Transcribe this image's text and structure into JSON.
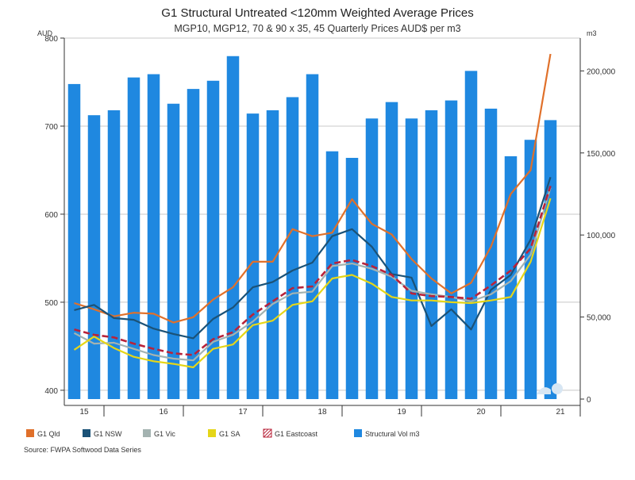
{
  "chart_data": {
    "type": "bar",
    "title": "G1 Structural Untreated <120mm Weighted Average Prices",
    "subtitle": "MGP10, MGP12, 70 & 90 x 35, 45 Quarterly Prices AUD$ per m3",
    "ylabel_left": "AUD",
    "ylabel_right": "m3",
    "source": "Source: FWPA Softwood Data Series",
    "ylim_left": [
      390,
      800
    ],
    "ylim_right": [
      0,
      220000
    ],
    "yticks_left": [
      "400",
      "500",
      "600",
      "700",
      "800"
    ],
    "yticks_right": [
      "0",
      "50,000",
      "100,000",
      "150,000",
      "200,000"
    ],
    "x_labels": [
      "15",
      "16",
      "17",
      "18",
      "19",
      "20",
      "21"
    ],
    "x_label_quarter_index": [
      0.5,
      4.5,
      8.5,
      12.5,
      16.5,
      20.5,
      24.5
    ],
    "num_quarters": 26,
    "bars": {
      "name": "Structural Vol m3",
      "color": "#1f88e0",
      "values": [
        192000,
        173000,
        176000,
        196000,
        198000,
        180000,
        189000,
        194000,
        209000,
        174000,
        176000,
        184000,
        198000,
        151000,
        147000,
        171000,
        181000,
        171000,
        176000,
        182000,
        200000,
        177000,
        148000,
        158000,
        170000
      ]
    },
    "series": [
      {
        "name": "G1 Qld",
        "color": "#e0702a",
        "dashed": false,
        "values": [
          499,
          492,
          484,
          488,
          487,
          477,
          483,
          503,
          517,
          546,
          546,
          583,
          575,
          579,
          617,
          589,
          577,
          549,
          527,
          510,
          522,
          563,
          623,
          650,
          782
        ]
      },
      {
        "name": "G1 NSW",
        "color": "#1b5277",
        "dashed": false,
        "values": [
          491,
          497,
          482,
          480,
          470,
          464,
          459,
          481,
          494,
          517,
          523,
          536,
          545,
          575,
          583,
          563,
          532,
          528,
          473,
          492,
          469,
          514,
          531,
          571,
          642
        ]
      },
      {
        "name": "G1 Vic",
        "color": "#a4b3b1",
        "dashed": false,
        "values": [
          465,
          453,
          454,
          447,
          440,
          436,
          434,
          455,
          463,
          478,
          498,
          510,
          512,
          541,
          544,
          538,
          529,
          513,
          509,
          506,
          501,
          509,
          524,
          554,
          630
        ]
      },
      {
        "name": "G1 SA",
        "color": "#e5d618",
        "dashed": false,
        "values": [
          446,
          461,
          448,
          438,
          433,
          430,
          426,
          447,
          452,
          474,
          479,
          497,
          501,
          527,
          531,
          521,
          506,
          502,
          502,
          500,
          499,
          502,
          506,
          546,
          618
        ]
      },
      {
        "name": "G1 Eastcoast",
        "color": "#b8233a",
        "dashed": true,
        "values": [
          469,
          463,
          460,
          453,
          447,
          442,
          440,
          458,
          466,
          486,
          501,
          516,
          518,
          544,
          548,
          541,
          531,
          510,
          507,
          506,
          504,
          519,
          536,
          561,
          632
        ]
      }
    ],
    "legend_position": "bottom",
    "grid": true,
    "watermark": "FWPA"
  }
}
